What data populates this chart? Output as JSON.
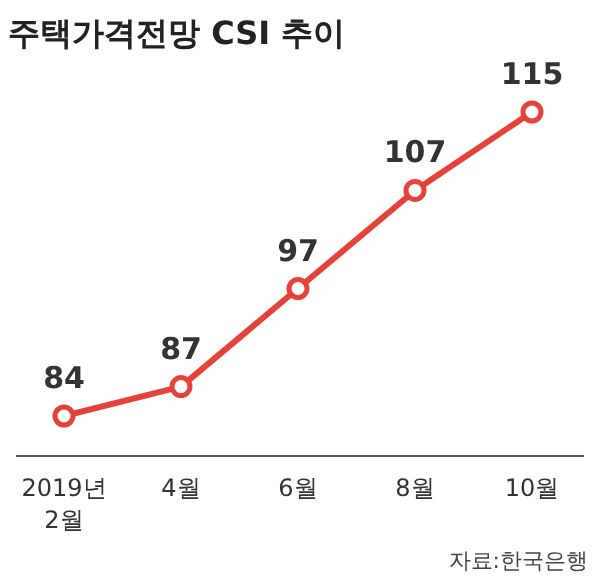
{
  "chart_data": {
    "type": "line",
    "title": "주택가격전망 CSI 추이",
    "categories": [
      "2019년\n2월",
      "4월",
      "6월",
      "8월",
      "10월"
    ],
    "series": [
      {
        "color": "#e5423a",
        "values": [
          84,
          87,
          97,
          107,
          115
        ]
      }
    ],
    "marker": "circle",
    "data_labels": true,
    "grid": false,
    "annotations": [
      "자료:한국은행"
    ]
  }
}
